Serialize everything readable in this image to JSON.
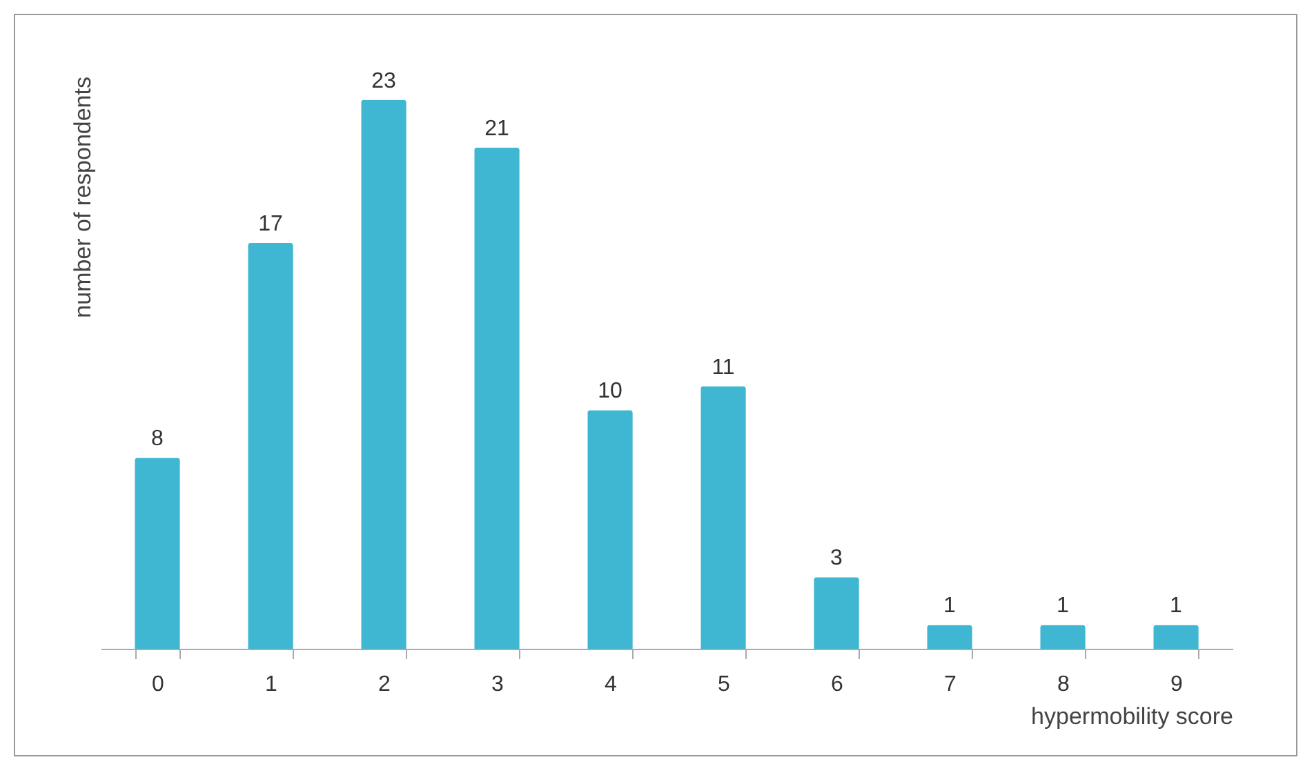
{
  "chart_data": {
    "type": "bar",
    "xlabel": "hypermobility score",
    "ylabel": "number of respondents",
    "categories": [
      "0",
      "1",
      "2",
      "3",
      "4",
      "5",
      "6",
      "7",
      "8",
      "9"
    ],
    "values": [
      8,
      17,
      23,
      21,
      10,
      11,
      3,
      1,
      1,
      1
    ],
    "color": "#3fb6d2",
    "data_labels": true,
    "grid": false
  }
}
